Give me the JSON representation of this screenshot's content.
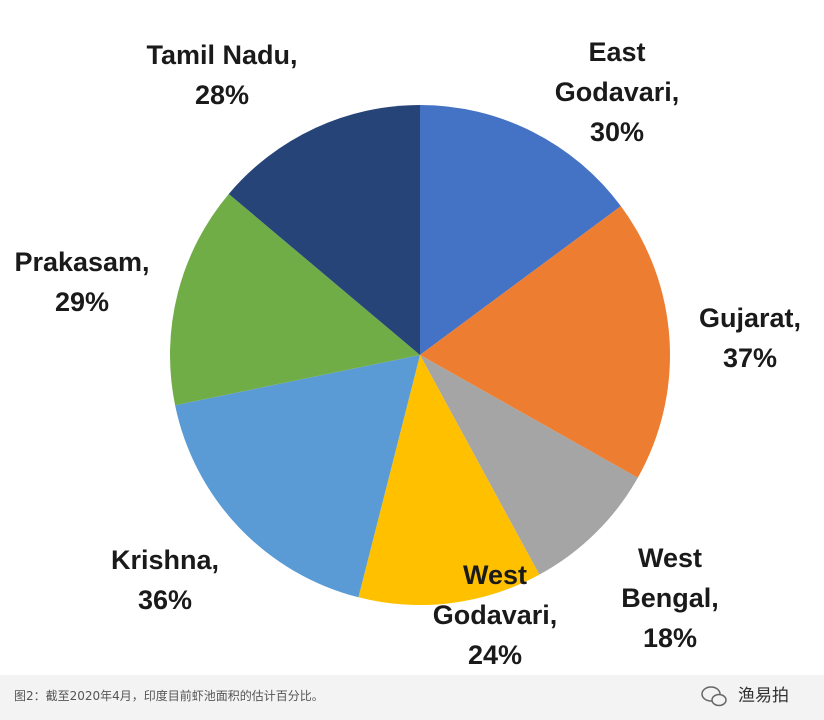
{
  "chart_data": {
    "type": "pie",
    "categories": [
      "East Godavari, 30%",
      "Gujarat, 37%",
      "West Bengal, 18%",
      "West Godavari, 24%",
      "Krishna, 36%",
      "Prakasam, 29%",
      "Tamil Nadu, 28%"
    ],
    "values": [
      30,
      37,
      18,
      24,
      36,
      29,
      28
    ],
    "colors": [
      "#4472c4",
      "#ed7d31",
      "#a5a5a5",
      "#ffc000",
      "#5b9bd5",
      "#70ad47",
      "#264478"
    ]
  },
  "caption": "图2：截至2020年4月，印度目前虾池面积的估计百分比。",
  "watermark": "渔易拍"
}
